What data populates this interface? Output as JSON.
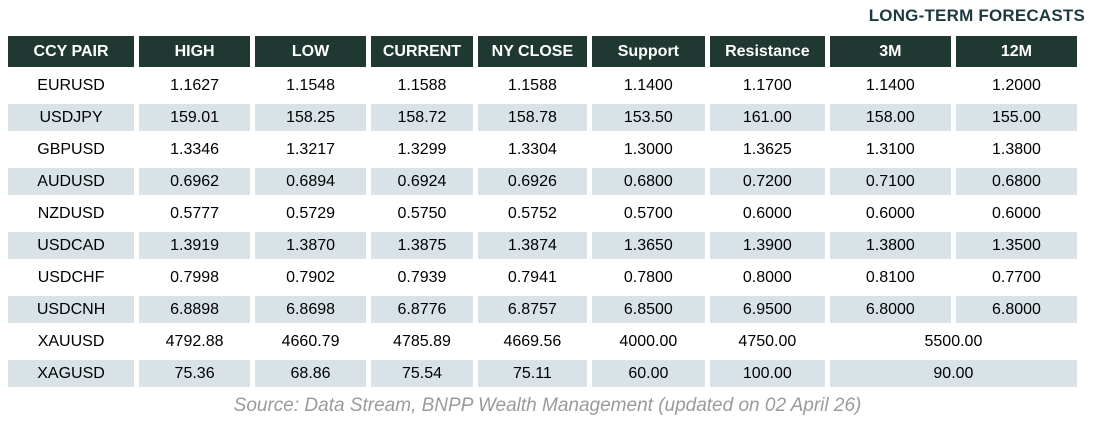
{
  "title": "LONG-TERM FORECASTS",
  "table": {
    "headers": [
      "CCY PAIR",
      "HIGH",
      "LOW",
      "CURRENT",
      "NY CLOSE",
      "Support",
      "Resistance",
      "3M",
      "12M"
    ],
    "rows": [
      {
        "pair": "EURUSD",
        "high": "1.1627",
        "low": "1.1548",
        "current": "1.1588",
        "ny_close": "1.1588",
        "support": "1.1400",
        "resistance": "1.1700",
        "m3": "1.1400",
        "m12": "1.2000"
      },
      {
        "pair": "USDJPY",
        "high": "159.01",
        "low": "158.25",
        "current": "158.72",
        "ny_close": "158.78",
        "support": "153.50",
        "resistance": "161.00",
        "m3": "158.00",
        "m12": "155.00"
      },
      {
        "pair": "GBPUSD",
        "high": "1.3346",
        "low": "1.3217",
        "current": "1.3299",
        "ny_close": "1.3304",
        "support": "1.3000",
        "resistance": "1.3625",
        "m3": "1.3100",
        "m12": "1.3800"
      },
      {
        "pair": "AUDUSD",
        "high": "0.6962",
        "low": "0.6894",
        "current": "0.6924",
        "ny_close": "0.6926",
        "support": "0.6800",
        "resistance": "0.7200",
        "m3": "0.7100",
        "m12": "0.6800"
      },
      {
        "pair": "NZDUSD",
        "high": "0.5777",
        "low": "0.5729",
        "current": "0.5750",
        "ny_close": "0.5752",
        "support": "0.5700",
        "resistance": "0.6000",
        "m3": "0.6000",
        "m12": "0.6000"
      },
      {
        "pair": "USDCAD",
        "high": "1.3919",
        "low": "1.3870",
        "current": "1.3875",
        "ny_close": "1.3874",
        "support": "1.3650",
        "resistance": "1.3900",
        "m3": "1.3800",
        "m12": "1.3500"
      },
      {
        "pair": "USDCHF",
        "high": "0.7998",
        "low": "0.7902",
        "current": "0.7939",
        "ny_close": "0.7941",
        "support": "0.7800",
        "resistance": "0.8000",
        "m3": "0.8100",
        "m12": "0.7700"
      },
      {
        "pair": "USDCNH",
        "high": "6.8898",
        "low": "6.8698",
        "current": "6.8776",
        "ny_close": "6.8757",
        "support": "6.8500",
        "resistance": "6.9500",
        "m3": "6.8000",
        "m12": "6.8000"
      },
      {
        "pair": "XAUUSD",
        "high": "4792.88",
        "low": "4660.79",
        "current": "4785.89",
        "ny_close": "4669.56",
        "support": "4000.00",
        "resistance": "4750.00",
        "forecast_merged": "5500.00"
      },
      {
        "pair": "XAGUSD",
        "high": "75.36",
        "low": "68.86",
        "current": "75.54",
        "ny_close": "75.11",
        "support": "60.00",
        "resistance": "100.00",
        "forecast_merged": "90.00"
      }
    ]
  },
  "footer": {
    "source": "Source: Data Stream, BNPP Wealth Management (updated on 02 April 26)"
  },
  "colors": {
    "header_bg": "#203832",
    "header_text": "#ffffff",
    "row_alt_bg": "#d8e2e7",
    "title_text": "#1c3a40",
    "source_text": "#9b9b9b"
  }
}
